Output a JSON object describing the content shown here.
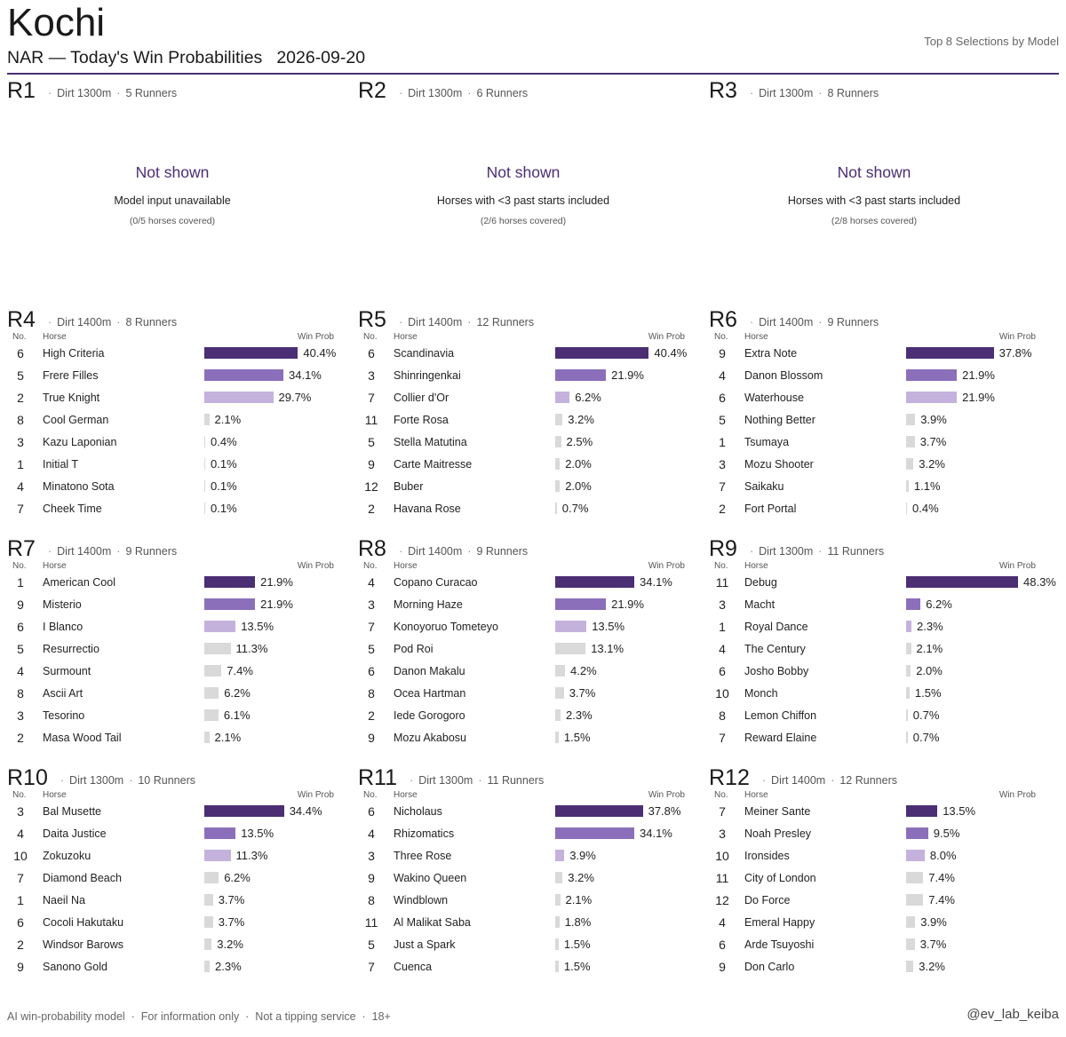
{
  "header": {
    "title": "Kochi",
    "subtitle": "NAR — Today's Win Probabilities",
    "date": "2026-09-20",
    "right_note": "Top 8 Selections by Model"
  },
  "columns": {
    "no": "No.",
    "horse": "Horse",
    "prob": "Win Prob"
  },
  "colors": {
    "accent": "#4b2e73",
    "rank1": "#4b2e73",
    "rank2": "#8b6fba",
    "rank3": "#c4b2dd",
    "rest": "#d9d9d9"
  },
  "races": [
    {
      "id": "R1",
      "surface": "Dirt 1300m",
      "runners": "5 Runners",
      "status": "not_shown",
      "not_shown_title": "Not shown",
      "reason": "Model input unavailable",
      "coverage": "(0/5 horses covered)"
    },
    {
      "id": "R2",
      "surface": "Dirt 1300m",
      "runners": "6 Runners",
      "status": "not_shown",
      "not_shown_title": "Not shown",
      "reason": "Horses with <3 past starts included",
      "coverage": "(2/6 horses covered)"
    },
    {
      "id": "R3",
      "surface": "Dirt 1300m",
      "runners": "8 Runners",
      "status": "not_shown",
      "not_shown_title": "Not shown",
      "reason": "Horses with <3 past starts included",
      "coverage": "(2/8 horses covered)"
    },
    {
      "id": "R4",
      "surface": "Dirt 1400m",
      "runners": "8 Runners",
      "status": "shown",
      "entries": [
        {
          "no": "6",
          "horse": "High Criteria",
          "prob": 40.4,
          "label": "40.4%"
        },
        {
          "no": "5",
          "horse": "Frere Filles",
          "prob": 34.1,
          "label": "34.1%"
        },
        {
          "no": "2",
          "horse": "True Knight",
          "prob": 29.7,
          "label": "29.7%"
        },
        {
          "no": "8",
          "horse": "Cool German",
          "prob": 2.1,
          "label": "2.1%"
        },
        {
          "no": "3",
          "horse": "Kazu Laponian",
          "prob": 0.4,
          "label": "0.4%"
        },
        {
          "no": "1",
          "horse": "Initial T",
          "prob": 0.1,
          "label": "0.1%"
        },
        {
          "no": "4",
          "horse": "Minatono Sota",
          "prob": 0.1,
          "label": "0.1%"
        },
        {
          "no": "7",
          "horse": "Cheek Time",
          "prob": 0.1,
          "label": "0.1%"
        }
      ]
    },
    {
      "id": "R5",
      "surface": "Dirt 1400m",
      "runners": "12 Runners",
      "status": "shown",
      "entries": [
        {
          "no": "6",
          "horse": "Scandinavia",
          "prob": 40.4,
          "label": "40.4%"
        },
        {
          "no": "3",
          "horse": "Shinringenkai",
          "prob": 21.9,
          "label": "21.9%"
        },
        {
          "no": "7",
          "horse": "Collier d'Or",
          "prob": 6.2,
          "label": "6.2%"
        },
        {
          "no": "11",
          "horse": "Forte Rosa",
          "prob": 3.2,
          "label": "3.2%"
        },
        {
          "no": "5",
          "horse": "Stella Matutina",
          "prob": 2.5,
          "label": "2.5%"
        },
        {
          "no": "9",
          "horse": "Carte Maitresse",
          "prob": 2.0,
          "label": "2.0%"
        },
        {
          "no": "12",
          "horse": "Buber",
          "prob": 2.0,
          "label": "2.0%"
        },
        {
          "no": "2",
          "horse": "Havana Rose",
          "prob": 0.7,
          "label": "0.7%"
        }
      ]
    },
    {
      "id": "R6",
      "surface": "Dirt 1400m",
      "runners": "9 Runners",
      "status": "shown",
      "entries": [
        {
          "no": "9",
          "horse": "Extra Note",
          "prob": 37.8,
          "label": "37.8%"
        },
        {
          "no": "4",
          "horse": "Danon Blossom",
          "prob": 21.9,
          "label": "21.9%"
        },
        {
          "no": "6",
          "horse": "Waterhouse",
          "prob": 21.9,
          "label": "21.9%"
        },
        {
          "no": "5",
          "horse": "Nothing Better",
          "prob": 3.9,
          "label": "3.9%"
        },
        {
          "no": "1",
          "horse": "Tsumaya",
          "prob": 3.7,
          "label": "3.7%"
        },
        {
          "no": "3",
          "horse": "Mozu Shooter",
          "prob": 3.2,
          "label": "3.2%"
        },
        {
          "no": "7",
          "horse": "Saikaku",
          "prob": 1.1,
          "label": "1.1%"
        },
        {
          "no": "2",
          "horse": "Fort Portal",
          "prob": 0.4,
          "label": "0.4%"
        }
      ]
    },
    {
      "id": "R7",
      "surface": "Dirt 1400m",
      "runners": "9 Runners",
      "status": "shown",
      "entries": [
        {
          "no": "1",
          "horse": "American Cool",
          "prob": 21.9,
          "label": "21.9%"
        },
        {
          "no": "9",
          "horse": "Misterio",
          "prob": 21.9,
          "label": "21.9%"
        },
        {
          "no": "6",
          "horse": "I Blanco",
          "prob": 13.5,
          "label": "13.5%"
        },
        {
          "no": "5",
          "horse": "Resurrectio",
          "prob": 11.3,
          "label": "11.3%"
        },
        {
          "no": "4",
          "horse": "Surmount",
          "prob": 7.4,
          "label": "7.4%"
        },
        {
          "no": "8",
          "horse": "Ascii Art",
          "prob": 6.2,
          "label": "6.2%"
        },
        {
          "no": "3",
          "horse": "Tesorino",
          "prob": 6.1,
          "label": "6.1%"
        },
        {
          "no": "2",
          "horse": "Masa Wood Tail",
          "prob": 2.1,
          "label": "2.1%"
        }
      ]
    },
    {
      "id": "R8",
      "surface": "Dirt 1400m",
      "runners": "9 Runners",
      "status": "shown",
      "entries": [
        {
          "no": "4",
          "horse": "Copano Curacao",
          "prob": 34.1,
          "label": "34.1%"
        },
        {
          "no": "3",
          "horse": "Morning Haze",
          "prob": 21.9,
          "label": "21.9%"
        },
        {
          "no": "7",
          "horse": "Konoyoruo Tometeyo",
          "prob": 13.5,
          "label": "13.5%"
        },
        {
          "no": "5",
          "horse": "Pod Roi",
          "prob": 13.1,
          "label": "13.1%"
        },
        {
          "no": "6",
          "horse": "Danon Makalu",
          "prob": 4.2,
          "label": "4.2%"
        },
        {
          "no": "8",
          "horse": "Ocea Hartman",
          "prob": 3.7,
          "label": "3.7%"
        },
        {
          "no": "2",
          "horse": "Iede Gorogoro",
          "prob": 2.3,
          "label": "2.3%"
        },
        {
          "no": "9",
          "horse": "Mozu Akabosu",
          "prob": 1.5,
          "label": "1.5%"
        }
      ]
    },
    {
      "id": "R9",
      "surface": "Dirt 1300m",
      "runners": "11 Runners",
      "status": "shown",
      "entries": [
        {
          "no": "11",
          "horse": "Debug",
          "prob": 48.3,
          "label": "48.3%"
        },
        {
          "no": "3",
          "horse": "Macht",
          "prob": 6.2,
          "label": "6.2%"
        },
        {
          "no": "1",
          "horse": "Royal Dance",
          "prob": 2.3,
          "label": "2.3%"
        },
        {
          "no": "4",
          "horse": "The Century",
          "prob": 2.1,
          "label": "2.1%"
        },
        {
          "no": "6",
          "horse": "Josho Bobby",
          "prob": 2.0,
          "label": "2.0%"
        },
        {
          "no": "10",
          "horse": "Monch",
          "prob": 1.5,
          "label": "1.5%"
        },
        {
          "no": "8",
          "horse": "Lemon Chiffon",
          "prob": 0.7,
          "label": "0.7%"
        },
        {
          "no": "7",
          "horse": "Reward Elaine",
          "prob": 0.7,
          "label": "0.7%"
        }
      ]
    },
    {
      "id": "R10",
      "surface": "Dirt 1300m",
      "runners": "10 Runners",
      "status": "shown",
      "entries": [
        {
          "no": "3",
          "horse": "Bal Musette",
          "prob": 34.4,
          "label": "34.4%"
        },
        {
          "no": "4",
          "horse": "Daita Justice",
          "prob": 13.5,
          "label": "13.5%"
        },
        {
          "no": "10",
          "horse": "Zokuzoku",
          "prob": 11.3,
          "label": "11.3%"
        },
        {
          "no": "7",
          "horse": "Diamond Beach",
          "prob": 6.2,
          "label": "6.2%"
        },
        {
          "no": "1",
          "horse": "Naeil Na",
          "prob": 3.7,
          "label": "3.7%"
        },
        {
          "no": "6",
          "horse": "Cocoli Hakutaku",
          "prob": 3.7,
          "label": "3.7%"
        },
        {
          "no": "2",
          "horse": "Windsor Barows",
          "prob": 3.2,
          "label": "3.2%"
        },
        {
          "no": "9",
          "horse": "Sanono Gold",
          "prob": 2.3,
          "label": "2.3%"
        }
      ]
    },
    {
      "id": "R11",
      "surface": "Dirt 1300m",
      "runners": "11 Runners",
      "status": "shown",
      "entries": [
        {
          "no": "6",
          "horse": "Nicholaus",
          "prob": 37.8,
          "label": "37.8%"
        },
        {
          "no": "4",
          "horse": "Rhizomatics",
          "prob": 34.1,
          "label": "34.1%"
        },
        {
          "no": "3",
          "horse": "Three Rose",
          "prob": 3.9,
          "label": "3.9%"
        },
        {
          "no": "9",
          "horse": "Wakino Queen",
          "prob": 3.2,
          "label": "3.2%"
        },
        {
          "no": "8",
          "horse": "Windblown",
          "prob": 2.1,
          "label": "2.1%"
        },
        {
          "no": "11",
          "horse": "Al Malikat Saba",
          "prob": 1.8,
          "label": "1.8%"
        },
        {
          "no": "5",
          "horse": "Just a Spark",
          "prob": 1.5,
          "label": "1.5%"
        },
        {
          "no": "7",
          "horse": "Cuenca",
          "prob": 1.5,
          "label": "1.5%"
        }
      ]
    },
    {
      "id": "R12",
      "surface": "Dirt 1400m",
      "runners": "12 Runners",
      "status": "shown",
      "entries": [
        {
          "no": "7",
          "horse": "Meiner Sante",
          "prob": 13.5,
          "label": "13.5%"
        },
        {
          "no": "3",
          "horse": "Noah Presley",
          "prob": 9.5,
          "label": "9.5%"
        },
        {
          "no": "10",
          "horse": "Ironsides",
          "prob": 8.0,
          "label": "8.0%"
        },
        {
          "no": "11",
          "horse": "City of London",
          "prob": 7.4,
          "label": "7.4%"
        },
        {
          "no": "12",
          "horse": "Do Force",
          "prob": 7.4,
          "label": "7.4%"
        },
        {
          "no": "4",
          "horse": "Emeral Happy",
          "prob": 3.9,
          "label": "3.9%"
        },
        {
          "no": "6",
          "horse": "Arde Tsuyoshi",
          "prob": 3.7,
          "label": "3.7%"
        },
        {
          "no": "9",
          "horse": "Don Carlo",
          "prob": 3.2,
          "label": "3.2%"
        }
      ]
    }
  ],
  "footer": {
    "items": [
      "AI win-probability model",
      "For information only",
      "Not a tipping service",
      "18+"
    ],
    "separator": "·",
    "handle": "@ev_lab_keiba"
  }
}
